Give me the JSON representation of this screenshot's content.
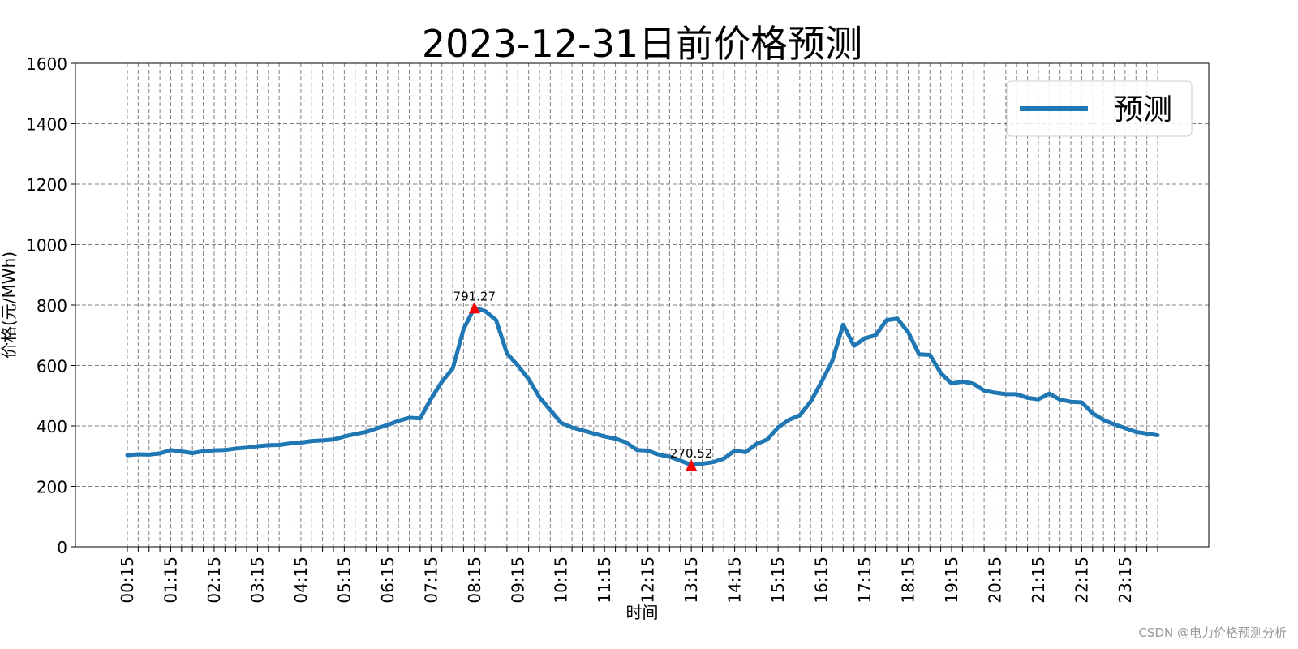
{
  "chart_data": {
    "type": "line",
    "title": "2023-12-31日前价格预测",
    "xlabel": "时间",
    "ylabel": "价格(元/MWh)",
    "ylim": [
      0,
      1600
    ],
    "yticks": [
      0,
      200,
      400,
      600,
      800,
      1000,
      1200,
      1400,
      1600
    ],
    "grid": true,
    "legend_position": "top-right",
    "series": [
      {
        "name": "预测",
        "color": "#1f77b4",
        "values": [
          303,
          306,
          305,
          309,
          320,
          315,
          310,
          316,
          319,
          320,
          325,
          328,
          333,
          336,
          337,
          342,
          345,
          350,
          352,
          355,
          365,
          373,
          380,
          392,
          403,
          417,
          427,
          425,
          490,
          546,
          590,
          720,
          791.27,
          780,
          750,
          640,
          600,
          555,
          495,
          452,
          410,
          395,
          385,
          375,
          365,
          358,
          345,
          320,
          318,
          305,
          298,
          285,
          270.52,
          275,
          280,
          292,
          318,
          313,
          340,
          355,
          395,
          420,
          435,
          480,
          545,
          615,
          735,
          665,
          690,
          700,
          750,
          755,
          710,
          637,
          635,
          575,
          540,
          547,
          540,
          517,
          510,
          505,
          505,
          493,
          488,
          507,
          487,
          480,
          478,
          442,
          420,
          405,
          393,
          380,
          375,
          369
        ]
      }
    ],
    "x_start_label": "00:15",
    "x_tick_labels": [
      "00:15",
      "01:15",
      "02:15",
      "03:15",
      "04:15",
      "05:15",
      "06:15",
      "07:15",
      "08:15",
      "09:15",
      "10:15",
      "11:15",
      "12:15",
      "13:15",
      "14:15",
      "15:15",
      "16:15",
      "17:15",
      "18:15",
      "19:15",
      "20:15",
      "21:15",
      "22:15",
      "23:15"
    ],
    "annotations": [
      {
        "index": 32,
        "value": 791.27,
        "label": "791.27",
        "marker": "triangle",
        "color": "#ff0000"
      },
      {
        "index": 52,
        "value": 270.52,
        "label": "270.52",
        "marker": "triangle",
        "color": "#ff0000"
      }
    ]
  },
  "watermark": "CSDN @电力价格预测分析"
}
